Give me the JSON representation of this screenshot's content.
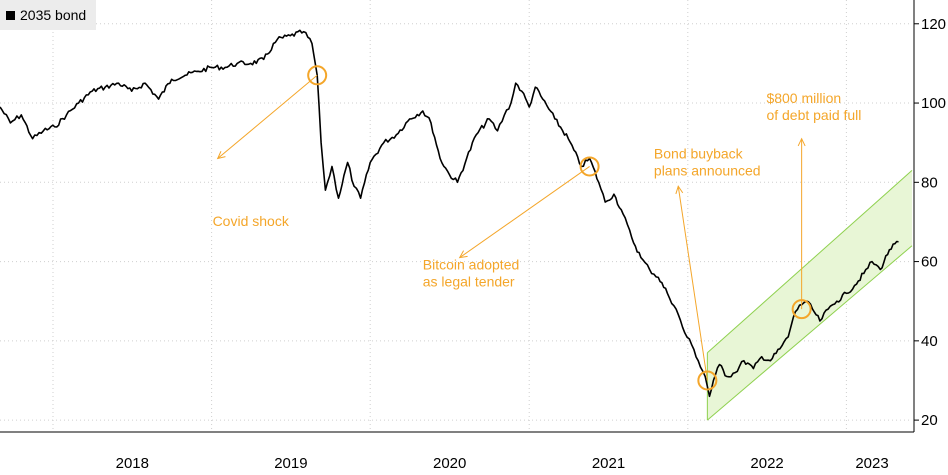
{
  "chart_data": {
    "type": "line",
    "title": "",
    "xlabel": "",
    "ylabel": "",
    "x_range": [
      "2017-09-01",
      "2023-06-01"
    ],
    "ylim": [
      17,
      126
    ],
    "y_ticks": [
      20,
      40,
      60,
      80,
      100,
      120
    ],
    "x_ticks": [
      {
        "label": "2018",
        "date": "2018-01-01"
      },
      {
        "label": "2019",
        "date": "2019-01-01"
      },
      {
        "label": "2020",
        "date": "2020-01-01"
      },
      {
        "label": "2021",
        "date": "2021-01-01"
      },
      {
        "label": "2022",
        "date": "2022-01-01"
      },
      {
        "label": "2023",
        "date": "2023-01-01"
      }
    ],
    "grid": true,
    "legend_position": "top-left",
    "colors": {
      "series": "#000000",
      "annotation": "#f4a62a",
      "channel_line": "#8fd14f",
      "channel_fill": "#e8f6d6",
      "grid": "#cfcfcf"
    },
    "series": [
      {
        "name": "2035 bond",
        "points": [
          [
            "2017-09-01",
            99
          ],
          [
            "2017-09-25",
            95
          ],
          [
            "2017-10-20",
            97
          ],
          [
            "2017-11-15",
            91
          ],
          [
            "2017-12-10",
            93
          ],
          [
            "2018-01-05",
            94
          ],
          [
            "2018-02-01",
            97
          ],
          [
            "2018-03-01",
            100
          ],
          [
            "2018-04-01",
            103
          ],
          [
            "2018-05-01",
            104
          ],
          [
            "2018-06-01",
            105
          ],
          [
            "2018-07-01",
            103
          ],
          [
            "2018-08-01",
            105
          ],
          [
            "2018-09-01",
            101
          ],
          [
            "2018-10-01",
            106
          ],
          [
            "2018-11-01",
            107
          ],
          [
            "2018-12-01",
            108
          ],
          [
            "2019-01-01",
            109
          ],
          [
            "2019-02-01",
            109
          ],
          [
            "2019-03-01",
            110
          ],
          [
            "2019-04-01",
            110
          ],
          [
            "2019-05-01",
            111
          ],
          [
            "2019-06-01",
            116
          ],
          [
            "2019-07-01",
            117
          ],
          [
            "2019-08-01",
            118
          ],
          [
            "2019-08-20",
            115
          ],
          [
            "2019-09-01",
            107
          ],
          [
            "2019-09-10",
            90
          ],
          [
            "2019-09-20",
            78
          ],
          [
            "2019-10-05",
            84
          ],
          [
            "2019-10-20",
            76
          ],
          [
            "2019-11-10",
            85
          ],
          [
            "2019-11-25",
            79
          ],
          [
            "2019-12-10",
            76
          ],
          [
            "2020-01-01",
            85
          ],
          [
            "2020-02-01",
            90
          ],
          [
            "2020-03-01",
            92
          ],
          [
            "2020-04-01",
            96
          ],
          [
            "2020-05-01",
            98
          ],
          [
            "2020-05-20",
            95
          ],
          [
            "2020-06-10",
            86
          ],
          [
            "2020-07-01",
            82
          ],
          [
            "2020-07-20",
            80
          ],
          [
            "2020-08-10",
            86
          ],
          [
            "2020-09-01",
            92
          ],
          [
            "2020-10-01",
            96
          ],
          [
            "2020-10-20",
            93
          ],
          [
            "2020-11-05",
            97
          ],
          [
            "2020-11-20",
            100
          ],
          [
            "2020-12-01",
            105
          ],
          [
            "2020-12-15",
            103
          ],
          [
            "2021-01-01",
            99
          ],
          [
            "2021-01-15",
            104
          ],
          [
            "2021-02-01",
            101
          ],
          [
            "2021-03-01",
            96
          ],
          [
            "2021-04-01",
            91
          ],
          [
            "2021-05-01",
            84
          ],
          [
            "2021-05-20",
            86
          ],
          [
            "2021-06-10",
            80
          ],
          [
            "2021-06-25",
            75
          ],
          [
            "2021-07-15",
            77
          ],
          [
            "2021-08-05",
            72
          ],
          [
            "2021-08-25",
            66
          ],
          [
            "2021-09-15",
            61
          ],
          [
            "2021-10-05",
            58
          ],
          [
            "2021-10-25",
            56
          ],
          [
            "2021-11-15",
            52
          ],
          [
            "2021-12-05",
            48
          ],
          [
            "2021-12-25",
            42
          ],
          [
            "2022-01-10",
            39
          ],
          [
            "2022-01-25",
            35
          ],
          [
            "2022-02-10",
            31
          ],
          [
            "2022-02-20",
            26
          ],
          [
            "2022-03-01",
            30
          ],
          [
            "2022-03-15",
            34
          ],
          [
            "2022-04-01",
            31
          ],
          [
            "2022-04-20",
            32
          ],
          [
            "2022-05-10",
            35
          ],
          [
            "2022-06-01",
            33
          ],
          [
            "2022-06-20",
            36
          ],
          [
            "2022-07-10",
            35
          ],
          [
            "2022-08-01",
            38
          ],
          [
            "2022-08-20",
            41
          ],
          [
            "2022-09-01",
            46
          ],
          [
            "2022-09-15",
            49
          ],
          [
            "2022-10-01",
            50
          ],
          [
            "2022-10-15",
            48
          ],
          [
            "2022-11-01",
            45
          ],
          [
            "2022-11-20",
            48
          ],
          [
            "2022-12-10",
            50
          ],
          [
            "2023-01-01",
            52
          ],
          [
            "2023-01-20",
            54
          ],
          [
            "2023-02-10",
            57
          ],
          [
            "2023-03-01",
            60
          ],
          [
            "2023-03-20",
            58
          ],
          [
            "2023-04-10",
            63
          ],
          [
            "2023-05-01",
            65
          ]
        ]
      }
    ],
    "channel": {
      "upper": [
        [
          "2022-02-15",
          37
        ],
        [
          "2023-06-01",
          83
        ]
      ],
      "lower": [
        [
          "2022-02-15",
          20
        ],
        [
          "2023-06-01",
          64
        ]
      ]
    },
    "annotations": [
      {
        "lines": [
          "Covid shock"
        ],
        "marker": [
          "2019-09-01",
          107
        ],
        "arrow_to": [
          "2019-01-15",
          86
        ],
        "text_anchor": "middle",
        "text_at": [
          "2019-04-01",
          69
        ]
      },
      {
        "lines": [
          "Bitcoin adopted",
          "as legal tender"
        ],
        "marker": [
          "2021-05-20",
          84
        ],
        "arrow_to": [
          "2020-07-25",
          61
        ],
        "text_anchor": "start",
        "text_at": [
          "2020-05-01",
          58
        ]
      },
      {
        "lines": [
          "Bond buyback",
          "plans announced"
        ],
        "marker": [
          "2022-02-15",
          30
        ],
        "arrow_to": [
          "2021-12-10",
          79
        ],
        "text_anchor": "start",
        "text_at": [
          "2021-10-15",
          86
        ]
      },
      {
        "lines": [
          "$800 million",
          "of debt paid full"
        ],
        "marker": [
          "2022-09-20",
          48
        ],
        "arrow_to": [
          "2022-09-20",
          91
        ],
        "text_anchor": "start",
        "text_at": [
          "2022-07-01",
          100
        ]
      }
    ]
  }
}
